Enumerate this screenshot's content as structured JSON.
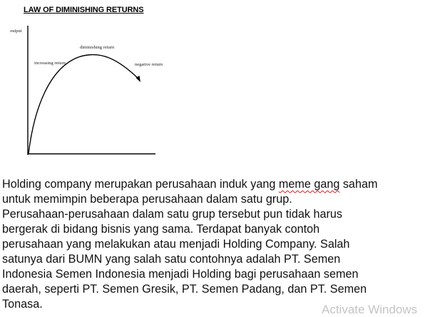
{
  "figure": {
    "title": "LAW OF DIMINISHING RETURNS",
    "y_axis_label": "output",
    "labels": {
      "increasing": "increasing return",
      "diminishing": "diminishing return",
      "negative": "negative return"
    }
  },
  "body": {
    "line_1_before": "Holding company merupakan perusahaan induk yang ",
    "line_1_flagged": "meme gang",
    "line_1_after": " saham",
    "line_2": "untuk memimpin beberapa perusahaan dalam satu grup.",
    "line_3": "Perusahaan-perusahaan dalam satu grup tersebut pun tidak harus",
    "line_4": "bergerak di bidang bisnis yang sama. Terdapat banyak contoh",
    "line_5": "perusahaan yang melakukan atau menjadi Holding Company. Salah",
    "line_6": "satunya dari BUMN yang salah satu contohnya adalah PT. Semen",
    "line_7": "Indonesia Semen Indonesia menjadi Holding bagi perusahaan semen",
    "line_8": "daerah, seperti PT. Semen Gresik, PT. Semen Padang, dan PT. Semen",
    "line_9": "Tonasa."
  },
  "watermark": "Activate Windows",
  "colors": {
    "spellcheck_underline": "#d42020",
    "watermark": "#c4c4c4"
  }
}
